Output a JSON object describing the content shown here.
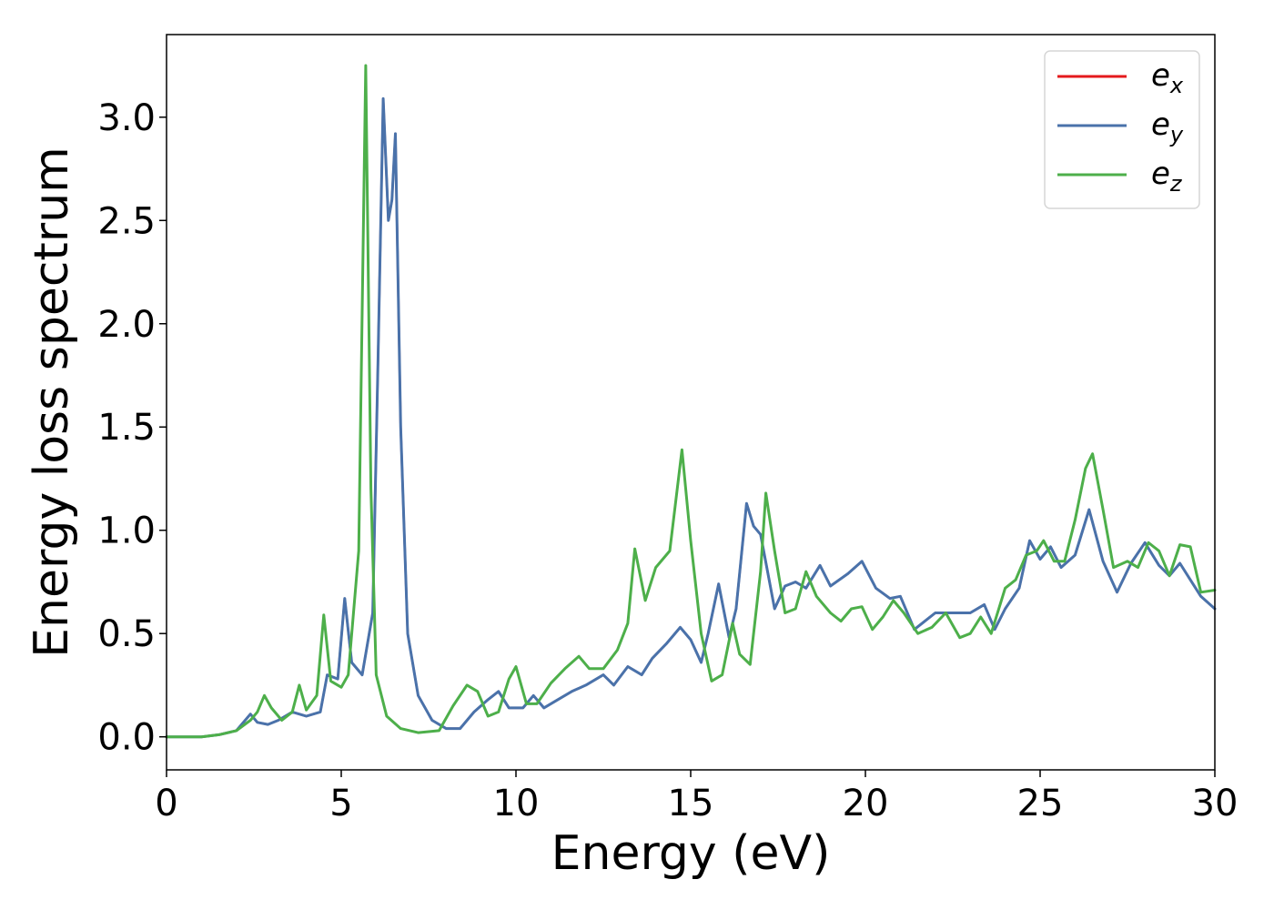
{
  "chart_data": {
    "type": "line",
    "title": "",
    "xlabel": "Energy (eV)",
    "ylabel": "Energy loss spectrum",
    "xlim": [
      0,
      30
    ],
    "ylim": [
      -0.16,
      3.4
    ],
    "xticks": [
      0,
      5,
      10,
      15,
      20,
      25,
      30
    ],
    "xtick_labels": [
      "0",
      "5",
      "10",
      "15",
      "20",
      "25",
      "30"
    ],
    "yticks": [
      0.0,
      0.5,
      1.0,
      1.5,
      2.0,
      2.5,
      3.0
    ],
    "ytick_labels": [
      "0.0",
      "0.5",
      "1.0",
      "1.5",
      "2.0",
      "2.5",
      "3.0"
    ],
    "grid": false,
    "legend_position": "top-right",
    "series": [
      {
        "name": "e_x",
        "label_base": "e",
        "label_sub": "x",
        "color": "#e41a1c",
        "x": [
          0,
          1,
          1.5,
          2,
          2.4,
          2.6,
          2.9,
          3.2,
          3.6,
          4.0,
          4.4,
          4.6,
          4.9,
          5.1,
          5.3,
          5.6,
          5.9,
          6.05,
          6.2,
          6.35,
          6.45,
          6.55,
          6.7,
          6.9,
          7.2,
          7.6,
          8.0,
          8.4,
          8.8,
          9.2,
          9.5,
          9.8,
          10.2,
          10.5,
          10.8,
          11.2,
          11.6,
          12.0,
          12.5,
          12.8,
          13.2,
          13.6,
          13.9,
          14.3,
          14.7,
          15.0,
          15.3,
          15.5,
          15.8,
          16.1,
          16.3,
          16.6,
          16.8,
          17.0,
          17.4,
          17.7,
          18.0,
          18.3,
          18.7,
          19.0,
          19.5,
          19.9,
          20.3,
          20.7,
          21.0,
          21.4,
          21.7,
          22.0,
          22.5,
          23.0,
          23.4,
          23.7,
          24.0,
          24.4,
          24.7,
          25.0,
          25.3,
          25.6,
          26.0,
          26.4,
          26.8,
          27.2,
          27.6,
          28.0,
          28.4,
          28.7,
          29.0,
          29.3,
          29.6,
          30.0
        ],
        "values": [
          0.0,
          0.0,
          0.01,
          0.03,
          0.11,
          0.07,
          0.06,
          0.08,
          0.12,
          0.1,
          0.12,
          0.3,
          0.28,
          0.67,
          0.36,
          0.3,
          0.6,
          1.8,
          3.09,
          2.5,
          2.6,
          2.92,
          1.5,
          0.5,
          0.2,
          0.08,
          0.04,
          0.04,
          0.12,
          0.18,
          0.22,
          0.14,
          0.14,
          0.2,
          0.14,
          0.18,
          0.22,
          0.25,
          0.3,
          0.25,
          0.34,
          0.3,
          0.38,
          0.45,
          0.53,
          0.47,
          0.36,
          0.5,
          0.74,
          0.48,
          0.62,
          1.13,
          1.02,
          0.98,
          0.62,
          0.73,
          0.75,
          0.72,
          0.83,
          0.73,
          0.79,
          0.85,
          0.72,
          0.67,
          0.68,
          0.52,
          0.56,
          0.6,
          0.6,
          0.6,
          0.64,
          0.52,
          0.62,
          0.72,
          0.95,
          0.86,
          0.92,
          0.82,
          0.88,
          1.1,
          0.85,
          0.7,
          0.84,
          0.94,
          0.83,
          0.78,
          0.84,
          0.76,
          0.68,
          0.62
        ]
      },
      {
        "name": "e_y",
        "label_base": "e",
        "label_sub": "y",
        "color": "#4a72aa",
        "x": [
          0,
          1,
          1.5,
          2,
          2.4,
          2.6,
          2.9,
          3.2,
          3.6,
          4.0,
          4.4,
          4.6,
          4.9,
          5.1,
          5.3,
          5.6,
          5.9,
          6.05,
          6.2,
          6.35,
          6.45,
          6.55,
          6.7,
          6.9,
          7.2,
          7.6,
          8.0,
          8.4,
          8.8,
          9.2,
          9.5,
          9.8,
          10.2,
          10.5,
          10.8,
          11.2,
          11.6,
          12.0,
          12.5,
          12.8,
          13.2,
          13.6,
          13.9,
          14.3,
          14.7,
          15.0,
          15.3,
          15.5,
          15.8,
          16.1,
          16.3,
          16.6,
          16.8,
          17.0,
          17.4,
          17.7,
          18.0,
          18.3,
          18.7,
          19.0,
          19.5,
          19.9,
          20.3,
          20.7,
          21.0,
          21.4,
          21.7,
          22.0,
          22.5,
          23.0,
          23.4,
          23.7,
          24.0,
          24.4,
          24.7,
          25.0,
          25.3,
          25.6,
          26.0,
          26.4,
          26.8,
          27.2,
          27.6,
          28.0,
          28.4,
          28.7,
          29.0,
          29.3,
          29.6,
          30.0
        ],
        "values": [
          0.0,
          0.0,
          0.01,
          0.03,
          0.11,
          0.07,
          0.06,
          0.08,
          0.12,
          0.1,
          0.12,
          0.3,
          0.28,
          0.67,
          0.36,
          0.3,
          0.6,
          1.8,
          3.09,
          2.5,
          2.6,
          2.92,
          1.5,
          0.5,
          0.2,
          0.08,
          0.04,
          0.04,
          0.12,
          0.18,
          0.22,
          0.14,
          0.14,
          0.2,
          0.14,
          0.18,
          0.22,
          0.25,
          0.3,
          0.25,
          0.34,
          0.3,
          0.38,
          0.45,
          0.53,
          0.47,
          0.36,
          0.5,
          0.74,
          0.48,
          0.62,
          1.13,
          1.02,
          0.98,
          0.62,
          0.73,
          0.75,
          0.72,
          0.83,
          0.73,
          0.79,
          0.85,
          0.72,
          0.67,
          0.68,
          0.52,
          0.56,
          0.6,
          0.6,
          0.6,
          0.64,
          0.52,
          0.62,
          0.72,
          0.95,
          0.86,
          0.92,
          0.82,
          0.88,
          1.1,
          0.85,
          0.7,
          0.84,
          0.94,
          0.83,
          0.78,
          0.84,
          0.76,
          0.68,
          0.62
        ]
      },
      {
        "name": "e_z",
        "label_base": "e",
        "label_sub": "z",
        "color": "#4daf4a",
        "x": [
          0,
          1,
          1.5,
          2,
          2.4,
          2.6,
          2.8,
          3.0,
          3.3,
          3.6,
          3.8,
          4.0,
          4.3,
          4.5,
          4.7,
          5.0,
          5.2,
          5.5,
          5.7,
          5.85,
          6.0,
          6.3,
          6.7,
          7.2,
          7.8,
          8.2,
          8.6,
          8.9,
          9.2,
          9.5,
          9.8,
          10.0,
          10.3,
          10.6,
          11.0,
          11.4,
          11.8,
          12.1,
          12.5,
          12.9,
          13.2,
          13.4,
          13.7,
          14.0,
          14.4,
          14.75,
          15.0,
          15.3,
          15.6,
          15.9,
          16.2,
          16.4,
          16.7,
          17.0,
          17.15,
          17.4,
          17.7,
          18.0,
          18.3,
          18.6,
          19.0,
          19.3,
          19.6,
          19.9,
          20.2,
          20.5,
          20.8,
          21.1,
          21.5,
          21.9,
          22.3,
          22.7,
          23.0,
          23.3,
          23.6,
          24.0,
          24.3,
          24.6,
          24.9,
          25.1,
          25.4,
          25.7,
          26.0,
          26.3,
          26.5,
          26.8,
          27.1,
          27.5,
          27.8,
          28.1,
          28.4,
          28.7,
          29.0,
          29.3,
          29.6,
          30.0
        ],
        "values": [
          0.0,
          0.0,
          0.01,
          0.03,
          0.08,
          0.12,
          0.2,
          0.14,
          0.08,
          0.12,
          0.25,
          0.13,
          0.2,
          0.59,
          0.27,
          0.24,
          0.3,
          0.9,
          3.25,
          1.2,
          0.3,
          0.1,
          0.04,
          0.02,
          0.03,
          0.15,
          0.25,
          0.22,
          0.1,
          0.12,
          0.28,
          0.34,
          0.16,
          0.16,
          0.26,
          0.33,
          0.39,
          0.33,
          0.33,
          0.42,
          0.55,
          0.91,
          0.66,
          0.82,
          0.9,
          1.39,
          0.95,
          0.5,
          0.27,
          0.3,
          0.55,
          0.4,
          0.35,
          0.8,
          1.18,
          0.9,
          0.6,
          0.62,
          0.8,
          0.68,
          0.6,
          0.56,
          0.62,
          0.63,
          0.52,
          0.58,
          0.66,
          0.6,
          0.5,
          0.53,
          0.6,
          0.48,
          0.5,
          0.58,
          0.5,
          0.72,
          0.76,
          0.88,
          0.9,
          0.95,
          0.85,
          0.85,
          1.05,
          1.3,
          1.37,
          1.1,
          0.82,
          0.85,
          0.82,
          0.94,
          0.9,
          0.78,
          0.93,
          0.92,
          0.7,
          0.71
        ]
      }
    ]
  }
}
